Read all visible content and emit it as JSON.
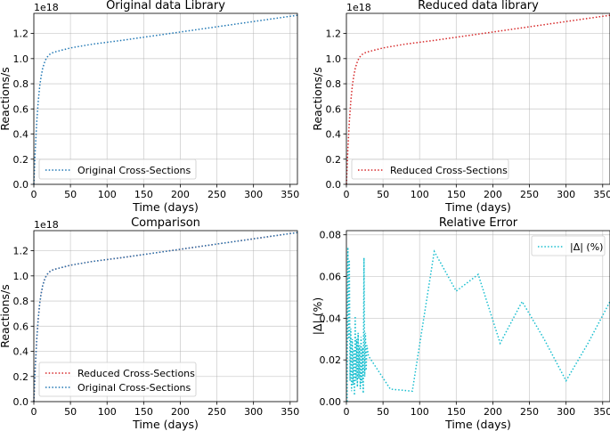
{
  "chart_data": [
    {
      "type": "line",
      "title": "Original data Library",
      "xlabel": "Time (days)",
      "ylabel": "Reactions/s",
      "offset_text": "1e18",
      "xlim": [
        0,
        360
      ],
      "ylim": [
        0,
        1.36
      ],
      "x_ticks": [
        0,
        50,
        100,
        150,
        200,
        250,
        300,
        350
      ],
      "y_ticks": [
        0.0,
        0.2,
        0.4,
        0.6,
        0.8,
        1.0,
        1.2
      ],
      "y_tick_labels": [
        "0.0",
        "0.2",
        "0.4",
        "0.6",
        "0.8",
        "1.0",
        "1.2"
      ],
      "legend_position": "lower-left",
      "series": [
        {
          "name": "Original Cross-Sections",
          "color": "#1f77b4",
          "x": [
            0,
            2,
            4,
            6,
            8,
            10,
            12,
            14,
            16,
            18,
            20,
            22,
            25,
            28,
            30,
            40,
            50,
            60,
            80,
            100,
            120,
            150,
            180,
            210,
            240,
            270,
            300,
            330,
            360
          ],
          "y": [
            0.0,
            0.28,
            0.5,
            0.66,
            0.78,
            0.86,
            0.92,
            0.96,
            0.99,
            1.01,
            1.025,
            1.035,
            1.045,
            1.052,
            1.055,
            1.07,
            1.085,
            1.095,
            1.115,
            1.13,
            1.145,
            1.17,
            1.195,
            1.22,
            1.245,
            1.27,
            1.295,
            1.32,
            1.345
          ]
        }
      ]
    },
    {
      "type": "line",
      "title": "Reduced data library",
      "xlabel": "Time (days)",
      "ylabel": "Reactions/s",
      "offset_text": "1e18",
      "xlim": [
        0,
        360
      ],
      "ylim": [
        0,
        1.36
      ],
      "x_ticks": [
        0,
        50,
        100,
        150,
        200,
        250,
        300,
        350
      ],
      "y_ticks": [
        0.0,
        0.2,
        0.4,
        0.6,
        0.8,
        1.0,
        1.2
      ],
      "y_tick_labels": [
        "0.0",
        "0.2",
        "0.4",
        "0.6",
        "0.8",
        "1.0",
        "1.2"
      ],
      "legend_position": "lower-left",
      "series": [
        {
          "name": "Reduced Cross-Sections",
          "color": "#d62728",
          "x": [
            0,
            2,
            4,
            6,
            8,
            10,
            12,
            14,
            16,
            18,
            20,
            22,
            25,
            28,
            30,
            40,
            50,
            60,
            80,
            100,
            120,
            150,
            180,
            210,
            240,
            270,
            300,
            330,
            360
          ],
          "y": [
            0.0,
            0.28,
            0.5,
            0.66,
            0.78,
            0.86,
            0.92,
            0.96,
            0.99,
            1.01,
            1.025,
            1.035,
            1.045,
            1.052,
            1.055,
            1.07,
            1.085,
            1.095,
            1.115,
            1.13,
            1.145,
            1.17,
            1.195,
            1.22,
            1.245,
            1.27,
            1.295,
            1.32,
            1.345
          ]
        }
      ]
    },
    {
      "type": "line",
      "title": "Comparison",
      "xlabel": "Time (days)",
      "ylabel": "Reactions/s",
      "offset_text": "1e18",
      "xlim": [
        0,
        360
      ],
      "ylim": [
        0,
        1.36
      ],
      "x_ticks": [
        0,
        50,
        100,
        150,
        200,
        250,
        300,
        350
      ],
      "y_ticks": [
        0.0,
        0.2,
        0.4,
        0.6,
        0.8,
        1.0,
        1.2
      ],
      "y_tick_labels": [
        "0.0",
        "0.2",
        "0.4",
        "0.6",
        "0.8",
        "1.0",
        "1.2"
      ],
      "legend_position": "lower-left",
      "series": [
        {
          "name": "Reduced Cross-Sections",
          "color": "#d62728",
          "x": [
            0,
            2,
            4,
            6,
            8,
            10,
            12,
            14,
            16,
            18,
            20,
            22,
            25,
            28,
            30,
            40,
            50,
            60,
            80,
            100,
            120,
            150,
            180,
            210,
            240,
            270,
            300,
            330,
            360
          ],
          "y": [
            0.0,
            0.28,
            0.5,
            0.66,
            0.78,
            0.86,
            0.92,
            0.96,
            0.99,
            1.01,
            1.025,
            1.035,
            1.045,
            1.052,
            1.055,
            1.07,
            1.085,
            1.095,
            1.115,
            1.13,
            1.145,
            1.17,
            1.195,
            1.22,
            1.245,
            1.27,
            1.295,
            1.32,
            1.345
          ]
        },
        {
          "name": "Original Cross-Sections",
          "color": "#1f77b4",
          "x": [
            0,
            2,
            4,
            6,
            8,
            10,
            12,
            14,
            16,
            18,
            20,
            22,
            25,
            28,
            30,
            40,
            50,
            60,
            80,
            100,
            120,
            150,
            180,
            210,
            240,
            270,
            300,
            330,
            360
          ],
          "y": [
            0.0,
            0.28,
            0.5,
            0.66,
            0.78,
            0.86,
            0.92,
            0.96,
            0.99,
            1.01,
            1.025,
            1.035,
            1.045,
            1.052,
            1.055,
            1.07,
            1.085,
            1.095,
            1.115,
            1.13,
            1.145,
            1.17,
            1.195,
            1.22,
            1.245,
            1.27,
            1.295,
            1.32,
            1.345
          ]
        }
      ]
    },
    {
      "type": "line",
      "title": "Relative Error",
      "xlabel": "Time (days)",
      "ylabel": "|Δ| (%)",
      "offset_text": "",
      "xlim": [
        0,
        360
      ],
      "ylim": [
        0,
        0.082
      ],
      "x_ticks": [
        0,
        50,
        100,
        150,
        200,
        250,
        300,
        350
      ],
      "y_ticks": [
        0.0,
        0.02,
        0.04,
        0.06,
        0.08
      ],
      "y_tick_labels": [
        "0.00",
        "0.02",
        "0.04",
        "0.06",
        "0.08"
      ],
      "legend_position": "upper-right",
      "series": [
        {
          "name": "|Δ| (%)",
          "color": "#17becf",
          "x": [
            1,
            2,
            3,
            4,
            5,
            6,
            7,
            8,
            9,
            10,
            11,
            12,
            13,
            14,
            15,
            16,
            17,
            18,
            19,
            20,
            21,
            22,
            23,
            24,
            25,
            26,
            27,
            28,
            30,
            60,
            90,
            120,
            150,
            180,
            210,
            240,
            270,
            300,
            330,
            360
          ],
          "y": [
            0.0,
            0.074,
            0.03,
            0.068,
            0.01,
            0.035,
            0.005,
            0.03,
            0.008,
            0.025,
            0.003,
            0.041,
            0.01,
            0.03,
            0.007,
            0.033,
            0.011,
            0.027,
            0.006,
            0.031,
            0.009,
            0.026,
            0.004,
            0.069,
            0.012,
            0.033,
            0.015,
            0.027,
            0.022,
            0.006,
            0.005,
            0.072,
            0.053,
            0.061,
            0.028,
            0.048,
            0.03,
            0.01,
            0.028,
            0.048
          ]
        }
      ]
    }
  ]
}
